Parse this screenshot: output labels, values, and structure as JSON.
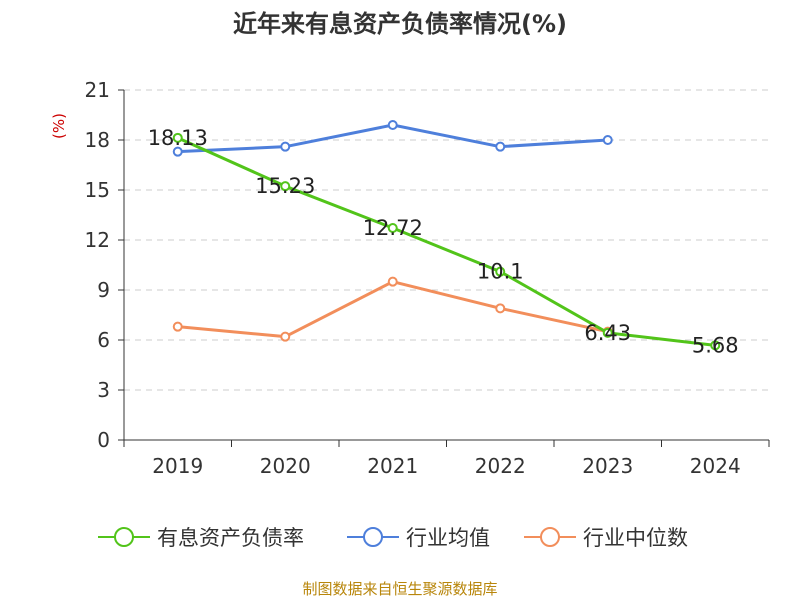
{
  "chart_data": {
    "type": "line",
    "title": "近年来有息资产负债率情况(%)",
    "ylabel": "(%)",
    "xlabel": "",
    "categories": [
      "2019",
      "2020",
      "2021",
      "2022",
      "2023",
      "2024"
    ],
    "ylim": [
      0,
      21
    ],
    "yticks": [
      0,
      3,
      6,
      9,
      12,
      15,
      18,
      21
    ],
    "grid": true,
    "legend_position": "bottom",
    "series": [
      {
        "name": "有息资产负债率",
        "color": "#52c41a",
        "values": [
          18.13,
          15.23,
          12.72,
          10.1,
          6.43,
          5.68
        ],
        "labels": [
          "18.13",
          "15.23",
          "12.72",
          "10.1",
          "6.43",
          "5.68"
        ]
      },
      {
        "name": "行业均值",
        "color": "#4e7fdb",
        "values": [
          17.3,
          17.6,
          18.9,
          17.6,
          18.0,
          null
        ]
      },
      {
        "name": "行业中位数",
        "color": "#f28e5b",
        "values": [
          6.8,
          6.2,
          9.5,
          7.9,
          6.5,
          null
        ]
      }
    ]
  },
  "source": "制图数据来自恒生聚源数据库"
}
